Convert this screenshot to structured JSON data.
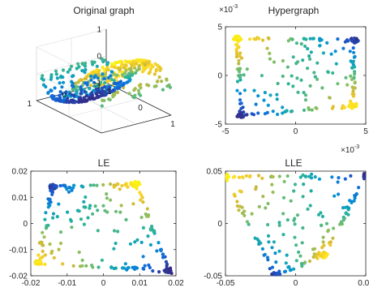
{
  "chart_data": [
    {
      "type": "scatter",
      "id": "original",
      "title": "Original graph",
      "projection": "3d",
      "x_ticks": [
        "-1",
        "0",
        "1"
      ],
      "y_ticks": [
        "1",
        "0",
        "-1"
      ],
      "z_ticks": [
        "-1",
        "0",
        "1"
      ],
      "x_range": [
        -1,
        1
      ],
      "y_range": [
        -1,
        1
      ],
      "z_range": [
        -1,
        1
      ],
      "surface": "z = sin(pi*x) * (1 - 0.35*y^2)",
      "colormap": "parula",
      "grid": true
    },
    {
      "type": "scatter",
      "id": "hypergraph",
      "title": "Hypergraph",
      "x_ticks": [
        "-5",
        "0",
        "5"
      ],
      "y_ticks": [
        "5",
        "0",
        "-5"
      ],
      "x_range": [
        -5,
        5
      ],
      "y_range": [
        -5,
        5
      ],
      "x_exponent_label": "×10",
      "x_exponent_power": "-3",
      "y_exponent_label": "×10",
      "y_exponent_power": "-3",
      "corners": [
        [
          -4.2,
          3.8
        ],
        [
          4.2,
          3.6
        ],
        [
          4.1,
          -3.1
        ],
        [
          -3.9,
          -4.1
        ]
      ],
      "corner_colors": [
        0.95,
        0.05,
        0.9,
        0.0
      ],
      "colormap": "parula"
    },
    {
      "type": "scatter",
      "id": "le",
      "title": "LE",
      "x_ticks": [
        "-0.02",
        "-0.01",
        "0",
        "0.01",
        "0.02"
      ],
      "y_ticks": [
        "0.02",
        "0.01",
        "0",
        "-0.01",
        "-0.02"
      ],
      "x_range": [
        -0.02,
        0.02
      ],
      "y_range": [
        -0.02,
        0.02
      ],
      "corners": [
        [
          -0.014,
          0.014
        ],
        [
          0.009,
          0.015
        ],
        [
          0.018,
          -0.018
        ],
        [
          -0.018,
          -0.015
        ]
      ],
      "corner_colors": [
        0.05,
        0.95,
        0.0,
        0.9
      ],
      "colormap": "parula"
    },
    {
      "type": "scatter",
      "id": "lle",
      "title": "LLE",
      "x_ticks": [
        "-0.05",
        "0",
        "0.05"
      ],
      "y_ticks": [
        "0.05",
        "0",
        "-0.05"
      ],
      "x_range": [
        -0.05,
        0.05
      ],
      "y_range": [
        -0.05,
        0.05
      ],
      "corners": [
        [
          -0.05,
          0.045
        ],
        [
          0.05,
          0.045
        ],
        [
          0.02,
          -0.03
        ],
        [
          -0.015,
          -0.05
        ]
      ],
      "corner_colors": [
        0.95,
        0.0,
        0.9,
        0.05
      ],
      "colormap": "parula"
    }
  ]
}
